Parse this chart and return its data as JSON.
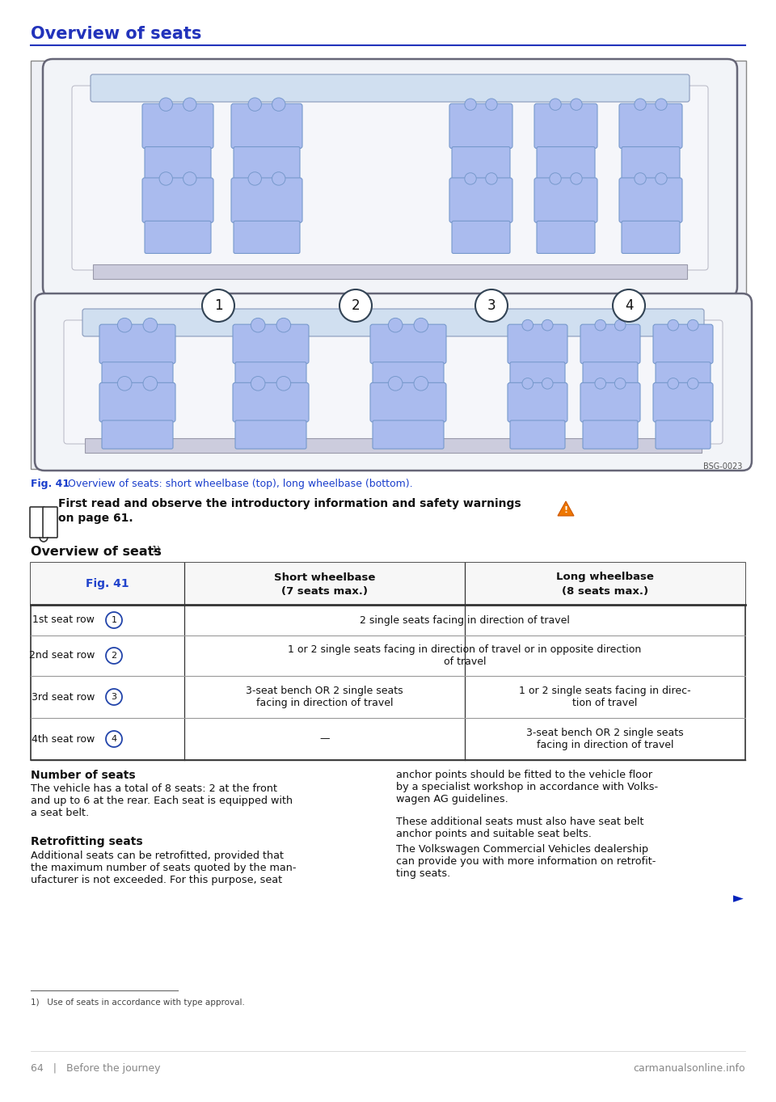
{
  "background_color": "#ffffff",
  "title": "Overview of seats",
  "title_color": "#2233bb",
  "fig_caption_bold": "Fig. 41",
  "fig_caption_rest": "  Overview of seats: short wheelbase (top), long wheelbase (bottom).",
  "fig_caption_color": "#1a3ecc",
  "bsg_code": "BSG-0023",
  "warning_line": "First read and observe the introductory information and safety warnings ⚠ on page 61.",
  "section_title": "Overview of seats",
  "table_col0_header": "Fig. 41",
  "table_col1_header_l1": "Short wheelbase",
  "table_col1_header_l2": "(7 seats max.)",
  "table_col2_header_l1": "Long wheelbase",
  "table_col2_header_l2": "(8 seats max.)",
  "row1_label": "1st seat row",
  "row1_num": "1",
  "row1_short": "2 single seats facing in direction of travel",
  "row1_long": "",
  "row1_merged": true,
  "row2_label": "2nd seat row",
  "row2_num": "2",
  "row2_short": "1 or 2 single seats facing in direction of travel or in opposite direction\nof travel",
  "row2_long": "",
  "row2_merged": true,
  "row3_label": "3rd seat row",
  "row3_num": "3",
  "row3_short": "3-seat bench OR 2 single seats\nfacing in direction of travel",
  "row3_long": "1 or 2 single seats facing in direc-\ntion of travel",
  "row3_merged": false,
  "row4_label": "4th seat row",
  "row4_num": "4",
  "row4_short": "—",
  "row4_long": "3-seat bench OR 2 single seats\nfacing in direction of travel",
  "row4_merged": false,
  "num_seats_title": "Number of seats",
  "num_seats_body": "The vehicle has a total of 8 seats: 2 at the front\nand up to 6 at the rear. Each seat is equipped with\na seat belt.",
  "retro_title": "Retrofitting seats",
  "retro_body": "Additional seats can be retrofitted, provided that\nthe maximum number of seats quoted by the man-\nufacturer is not exceeded. For this purpose, seat",
  "right_para1": "anchor points should be fitted to the vehicle floor\nby a specialist workshop in accordance with Volks-\nwagen AG guidelines.",
  "right_para2": "These additional seats must also have seat belt\nanchor points and suitable seat belts.",
  "right_para3": "The Volkswagen Commercial Vehicles dealership\ncan provide you with more information on retrofit-\nting seats.",
  "footnote": "1)   Use of seats in accordance with type approval.",
  "footer_left": "64   |   Before the journey",
  "footer_right": "carmanualsonline.info",
  "arrow": "►",
  "seat_fill": "#aabbee",
  "seat_edge": "#7799cc",
  "van_fill": "#f2f4f8",
  "van_edge": "#888899",
  "img_bg": "#e8ecf0"
}
